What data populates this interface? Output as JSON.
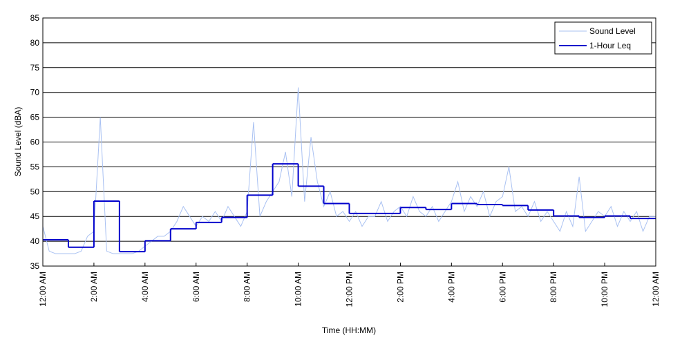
{
  "chart_data": {
    "type": "line",
    "xlabel": "Time (HH:MM)",
    "ylabel": "Sound Level (dBA)",
    "xlim": [
      0,
      24
    ],
    "xticks": [
      {
        "value": 0,
        "label": "12:00 AM"
      },
      {
        "value": 2,
        "label": "2:00 AM"
      },
      {
        "value": 4,
        "label": "4:00 AM"
      },
      {
        "value": 6,
        "label": "6:00 AM"
      },
      {
        "value": 8,
        "label": "8:00 AM"
      },
      {
        "value": 10,
        "label": "10:00 AM"
      },
      {
        "value": 12,
        "label": "12:00 PM"
      },
      {
        "value": 14,
        "label": "2:00 PM"
      },
      {
        "value": 16,
        "label": "4:00 PM"
      },
      {
        "value": 18,
        "label": "6:00 PM"
      },
      {
        "value": 20,
        "label": "8:00 PM"
      },
      {
        "value": 22,
        "label": "10:00 PM"
      },
      {
        "value": 24,
        "label": "12:00 AM"
      }
    ],
    "ylim": [
      35,
      85
    ],
    "yticks": [
      35,
      40,
      45,
      50,
      55,
      60,
      65,
      70,
      75,
      80,
      85
    ],
    "grid": true,
    "legend": "upper right",
    "series": [
      {
        "name": "Sound Level",
        "color": "#a9c1f2",
        "style": "line",
        "x": [
          0,
          0.25,
          0.5,
          0.75,
          1,
          1.25,
          1.5,
          1.75,
          2,
          2.25,
          2.5,
          2.75,
          3,
          3.25,
          3.5,
          3.75,
          4,
          4.25,
          4.5,
          4.75,
          5,
          5.25,
          5.5,
          5.75,
          6,
          6.25,
          6.5,
          6.75,
          7,
          7.25,
          7.5,
          7.75,
          8,
          8.25,
          8.5,
          8.75,
          9,
          9.25,
          9.5,
          9.75,
          10,
          10.25,
          10.5,
          10.75,
          11,
          11.25,
          11.5,
          11.75,
          12,
          12.25,
          12.5,
          12.75,
          13,
          13.25,
          13.5,
          13.75,
          14,
          14.25,
          14.5,
          14.75,
          15,
          15.25,
          15.5,
          15.75,
          16,
          16.25,
          16.5,
          16.75,
          17,
          17.25,
          17.5,
          17.75,
          18,
          18.25,
          18.5,
          18.75,
          19,
          19.25,
          19.5,
          19.75,
          20,
          20.25,
          20.5,
          20.75,
          21,
          21.25,
          21.5,
          21.75,
          22,
          22.25,
          22.5,
          22.75,
          23,
          23.25,
          23.5,
          23.75,
          24
        ],
        "values": [
          43,
          38,
          37.5,
          37.5,
          37.5,
          37.5,
          38,
          41,
          42,
          65,
          38,
          37.5,
          37.5,
          37.5,
          37.5,
          38,
          39,
          40,
          41,
          41,
          42,
          44,
          47,
          45,
          43,
          45,
          44,
          46,
          44,
          47,
          45,
          43,
          46,
          64,
          45,
          48,
          50,
          52,
          58,
          49,
          71,
          48,
          61,
          52,
          47,
          50,
          45,
          46,
          44,
          46,
          43,
          45,
          45,
          48,
          44,
          46,
          47,
          45,
          49,
          46,
          45,
          47,
          44,
          46,
          48,
          52,
          46,
          49,
          47,
          50,
          45,
          48,
          49,
          55,
          46,
          47,
          45,
          48,
          44,
          46,
          44,
          42,
          46,
          43,
          53,
          42,
          44,
          46,
          45,
          47,
          43,
          46,
          44,
          46,
          42,
          45,
          45
        ]
      },
      {
        "name": "1-Hour Leq",
        "color": "#0000cc",
        "style": "step",
        "x": [
          0,
          1,
          2,
          3,
          4,
          5,
          6,
          7,
          8,
          9,
          10,
          11,
          12,
          13,
          14,
          15,
          16,
          17,
          18,
          19,
          20,
          21,
          22,
          23
        ],
        "values": [
          40.3,
          38.8,
          48.1,
          37.9,
          40.1,
          42.5,
          43.8,
          44.8,
          49.3,
          55.6,
          51.1,
          47.6,
          45.6,
          45.6,
          46.8,
          46.4,
          47.6,
          47.4,
          47.2,
          46.3,
          45.1,
          44.8,
          45.1,
          44.6
        ]
      }
    ]
  }
}
